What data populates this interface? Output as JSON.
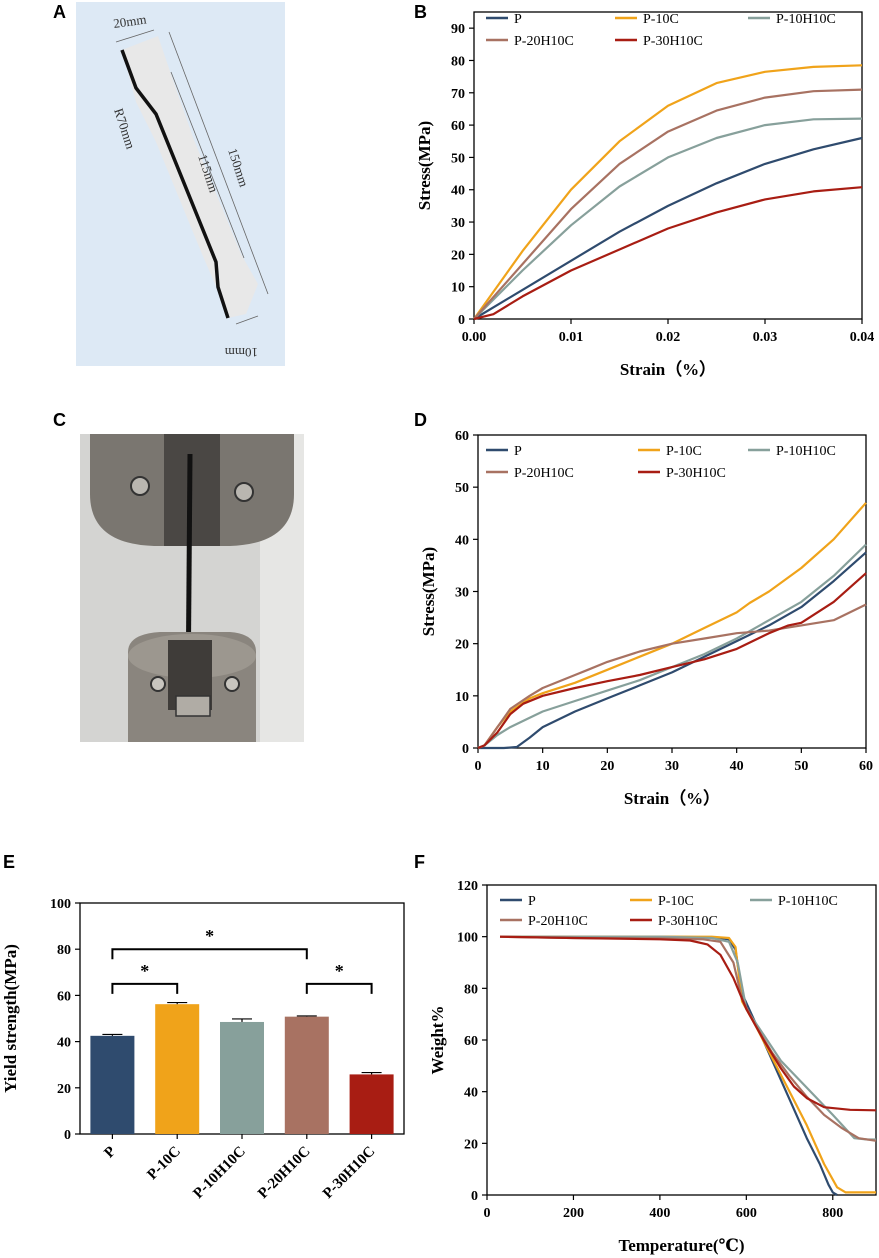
{
  "panels": {
    "A": "A",
    "B": "B",
    "C": "C",
    "D": "D",
    "E": "E",
    "F": "F"
  },
  "specimen": {
    "width_top": "20mm",
    "radius": "R70mm",
    "gauge_length": "115mm",
    "total_length": "150mm",
    "width_bottom": "10mm"
  },
  "colors": {
    "P": "#2f4b6e",
    "P-10C": "#f0a31a",
    "P-10H10C": "#87a09b",
    "P-20H10C": "#a87262",
    "P-30H10C": "#a81d13"
  },
  "chart_data": [
    {
      "id": "B",
      "type": "line",
      "title": "",
      "xlabel": "Strain（%）",
      "ylabel": "Stress(MPa)",
      "xlim": [
        0,
        0.04
      ],
      "ylim": [
        0,
        95
      ],
      "xticks": [
        0.0,
        0.01,
        0.02,
        0.03,
        0.04
      ],
      "xtick_labels": [
        "0.00",
        "0.01",
        "0.02",
        "0.03",
        "0.04"
      ],
      "yticks": [
        0,
        10,
        20,
        30,
        40,
        50,
        60,
        70,
        80,
        90
      ],
      "ytick_labels": [
        "0",
        "10",
        "20",
        "30",
        "40",
        "50",
        "60",
        "70",
        "80",
        "90"
      ],
      "legend_position": "top",
      "series": [
        {
          "name": "P",
          "x": [
            0,
            0.005,
            0.01,
            0.015,
            0.02,
            0.025,
            0.03,
            0.035,
            0.04
          ],
          "y": [
            0,
            9,
            18,
            27,
            35,
            42,
            48,
            52.5,
            56
          ]
        },
        {
          "name": "P-10C",
          "x": [
            0,
            0.005,
            0.01,
            0.015,
            0.02,
            0.025,
            0.03,
            0.035,
            0.04
          ],
          "y": [
            0,
            21,
            40,
            55,
            66,
            73,
            76.5,
            78,
            78.5
          ]
        },
        {
          "name": "P-10H10C",
          "x": [
            0,
            0.005,
            0.01,
            0.015,
            0.02,
            0.025,
            0.03,
            0.035,
            0.04
          ],
          "y": [
            0,
            15,
            29,
            41,
            50,
            56,
            60,
            61.8,
            62
          ]
        },
        {
          "name": "P-20H10C",
          "x": [
            0,
            0.005,
            0.01,
            0.015,
            0.02,
            0.025,
            0.03,
            0.035,
            0.04
          ],
          "y": [
            0,
            17,
            34,
            48,
            58,
            64.5,
            68.5,
            70.5,
            71
          ]
        },
        {
          "name": "P-30H10C",
          "x": [
            0,
            0.002,
            0.005,
            0.01,
            0.015,
            0.02,
            0.025,
            0.03,
            0.035,
            0.04
          ],
          "y": [
            0,
            1.5,
            7,
            15,
            21.5,
            28,
            33,
            37,
            39.5,
            40.8
          ]
        }
      ]
    },
    {
      "id": "D",
      "type": "line",
      "title": "",
      "xlabel": "Strain（%）",
      "ylabel": "Stress(MPa)",
      "xlim": [
        0,
        60
      ],
      "ylim": [
        0,
        60
      ],
      "xticks": [
        0,
        10,
        20,
        30,
        40,
        50,
        60
      ],
      "xtick_labels": [
        "0",
        "10",
        "20",
        "30",
        "40",
        "50",
        "60"
      ],
      "yticks": [
        0,
        10,
        20,
        30,
        40,
        50,
        60
      ],
      "ytick_labels": [
        "0",
        "10",
        "20",
        "30",
        "40",
        "50",
        "60"
      ],
      "legend_position": "top",
      "series": [
        {
          "name": "P",
          "x": [
            0,
            4,
            6,
            8,
            10,
            15,
            20,
            25,
            30,
            35,
            40,
            45,
            50,
            55,
            60
          ],
          "y": [
            0,
            0,
            0.2,
            2,
            4,
            7,
            9.5,
            12,
            14.5,
            17.5,
            20.5,
            23.5,
            27,
            32,
            37.5
          ]
        },
        {
          "name": "P-10C",
          "x": [
            0,
            1,
            3,
            5,
            8,
            10,
            15,
            20,
            25,
            30,
            35,
            40,
            42,
            45,
            50,
            55,
            60
          ],
          "y": [
            0,
            0.5,
            4,
            7,
            9.5,
            10.5,
            12.5,
            15,
            17.5,
            20,
            23,
            26,
            27.8,
            30,
            34.5,
            40,
            47
          ]
        },
        {
          "name": "P-10H10C",
          "x": [
            0,
            1,
            3,
            5,
            8,
            10,
            15,
            20,
            25,
            30,
            35,
            40,
            45,
            50,
            55,
            60
          ],
          "y": [
            0,
            0.5,
            2.5,
            4,
            5.8,
            7,
            9,
            11,
            13,
            15.5,
            18,
            21,
            24.5,
            28,
            33,
            39
          ]
        },
        {
          "name": "P-20H10C",
          "x": [
            0,
            1,
            3,
            5,
            8,
            10,
            15,
            17,
            20,
            25,
            30,
            35,
            40,
            45,
            50,
            55,
            60
          ],
          "y": [
            0,
            0.5,
            4,
            7.5,
            10,
            11.5,
            14,
            15,
            16.5,
            18.5,
            20,
            21,
            22,
            22.5,
            23.5,
            24.5,
            27.5
          ]
        },
        {
          "name": "P-30H10C",
          "x": [
            0,
            1,
            3,
            5,
            7,
            10,
            15,
            20,
            25,
            30,
            35,
            40,
            45,
            48,
            50,
            55,
            60
          ],
          "y": [
            0,
            0.5,
            3,
            6.5,
            8.5,
            10,
            11.5,
            12.8,
            14,
            15.5,
            17,
            19,
            22,
            23.5,
            24,
            28,
            33.5
          ]
        }
      ]
    },
    {
      "id": "E",
      "type": "bar",
      "title": "",
      "xlabel": "",
      "ylabel": "Yield strength(MPa)",
      "ylim": [
        0,
        100
      ],
      "yticks": [
        0,
        20,
        40,
        60,
        80,
        100
      ],
      "ytick_labels": [
        "0",
        "20",
        "40",
        "60",
        "80",
        "100"
      ],
      "categories": [
        "P",
        "P-10C",
        "P-10H10C",
        "P-20H10C",
        "P-30H10C"
      ],
      "values": [
        42.5,
        56.2,
        48.5,
        50.8,
        25.8
      ],
      "errors": [
        0.6,
        0.7,
        1.3,
        0.3,
        0.8
      ],
      "significance": [
        {
          "from": 0,
          "to": 1,
          "height": 65,
          "label": "*"
        },
        {
          "from": 0,
          "to": 3,
          "height": 80,
          "label": "*"
        },
        {
          "from": 3,
          "to": 4,
          "height": 65,
          "label": "*"
        }
      ]
    },
    {
      "id": "F",
      "type": "line",
      "title": "",
      "xlabel": "Temperature(℃)",
      "ylabel": "Weight%",
      "xlim": [
        0,
        900
      ],
      "ylim": [
        0,
        120
      ],
      "xticks": [
        0,
        200,
        400,
        600,
        800
      ],
      "xtick_labels": [
        "0",
        "200",
        "400",
        "600",
        "800"
      ],
      "yticks": [
        0,
        20,
        40,
        60,
        80,
        100,
        120
      ],
      "ytick_labels": [
        "0",
        "20",
        "40",
        "60",
        "80",
        "100",
        "120"
      ],
      "legend_position": "top",
      "series": [
        {
          "name": "P",
          "x": [
            30,
            200,
            400,
            520,
            560,
            575,
            590,
            620,
            660,
            700,
            740,
            770,
            790,
            800,
            810
          ],
          "y": [
            100,
            100,
            100,
            99.8,
            99,
            95,
            78,
            67,
            52,
            37,
            22,
            12,
            4,
            1,
            0
          ]
        },
        {
          "name": "P-10C",
          "x": [
            30,
            200,
            400,
            520,
            560,
            575,
            590,
            620,
            660,
            700,
            740,
            780,
            810,
            830,
            900
          ],
          "y": [
            100,
            100,
            100,
            100,
            99.5,
            96,
            75,
            66,
            53,
            40,
            27,
            12,
            3,
            1,
            1
          ]
        },
        {
          "name": "P-10H10C",
          "x": [
            30,
            200,
            400,
            520,
            560,
            580,
            600,
            640,
            680,
            720,
            760,
            800,
            850,
            880,
            900
          ],
          "y": [
            100,
            100,
            100,
            99.5,
            98,
            90,
            72,
            62,
            52,
            45,
            38,
            31,
            22,
            21.5,
            21.5
          ]
        },
        {
          "name": "P-20H10C",
          "x": [
            30,
            200,
            400,
            500,
            540,
            570,
            590,
            620,
            660,
            700,
            740,
            780,
            820,
            860,
            900
          ],
          "y": [
            100,
            99.5,
            99.3,
            99,
            98,
            90,
            76,
            66,
            55,
            46,
            38,
            31,
            26,
            22,
            21
          ]
        },
        {
          "name": "P-30H10C",
          "x": [
            30,
            200,
            400,
            470,
            510,
            540,
            570,
            600,
            640,
            680,
            710,
            740,
            780,
            840,
            900
          ],
          "y": [
            100,
            99.5,
            99,
            98.5,
            97,
            93,
            84,
            72,
            60,
            49,
            42,
            37.5,
            34,
            33,
            32.8
          ]
        }
      ]
    }
  ]
}
